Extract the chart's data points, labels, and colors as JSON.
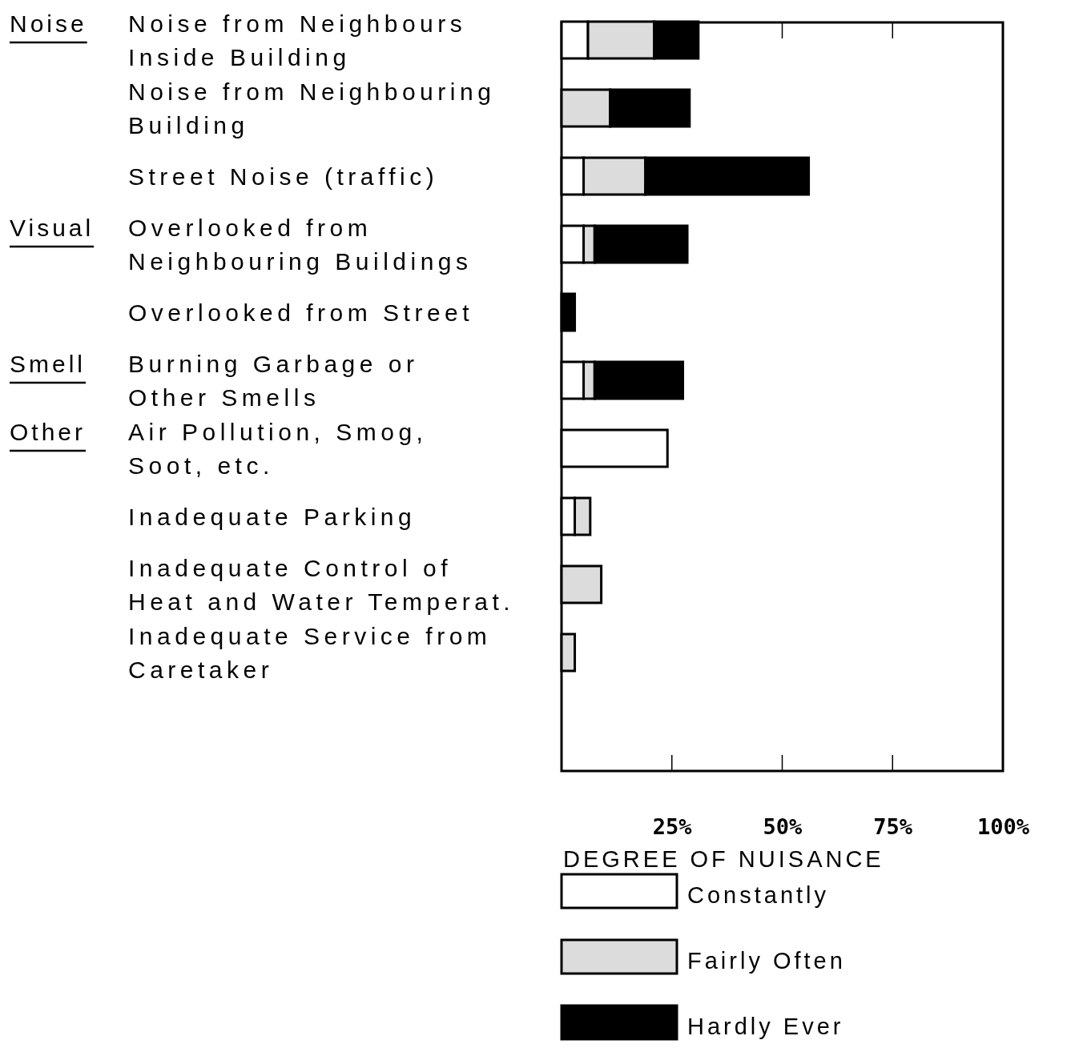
{
  "chart_data": {
    "type": "bar",
    "orientation": "horizontal",
    "stacked": true,
    "categories": [
      "Noise from Neighbours\nInside Building",
      "Noise from Neighbouring\nBuilding",
      "Street Noise (traffic)",
      "Overlooked from\nNeighbouring Buildings",
      "Overlooked from Street",
      "Burning Garbage or\nOther Smells",
      "Air Pollution, Smog,\nSoot, etc.",
      "Inadequate Parking",
      "Inadequate Control of\nHeat and Water Temperat.",
      "Inadequate Service from\nCaretaker"
    ],
    "series": [
      {
        "name": "Constantly",
        "color": "#ffffff",
        "values": [
          6,
          null,
          5,
          5,
          null,
          5,
          24,
          3,
          null,
          null
        ]
      },
      {
        "name": "Fairly Often",
        "color": "#dcdcdc",
        "values": [
          15,
          11,
          14,
          2.5,
          null,
          2.5,
          null,
          3.5,
          9,
          3
        ]
      },
      {
        "name": "Hardly Ever",
        "color": "#000000",
        "values": [
          10,
          18,
          37,
          21,
          3,
          20,
          null,
          null,
          null,
          null
        ]
      }
    ],
    "xlim": [
      0,
      100
    ],
    "xticks": [
      {
        "value": 25,
        "label": "25%"
      },
      {
        "value": 50,
        "label": "50%"
      },
      {
        "value": 75,
        "label": "75%"
      },
      {
        "value": 100,
        "label": "100%"
      }
    ],
    "legend": "bottom",
    "legend_title": "DEGREE OF NUISANCE",
    "grid": false,
    "annotations": [
      "Noise",
      "Visual",
      "Smell",
      "Other"
    ]
  }
}
